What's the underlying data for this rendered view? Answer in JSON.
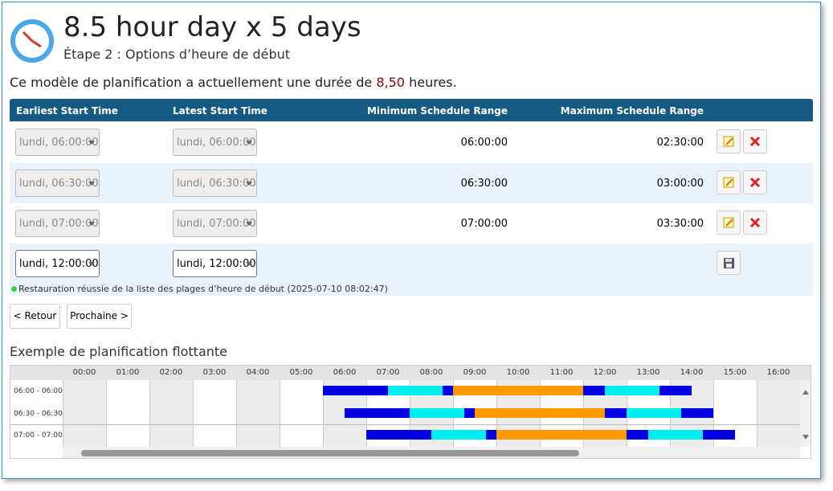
{
  "header": {
    "title": "8.5 hour day x 5 days",
    "subtitle": "Étape 2 : Options d’heure de début"
  },
  "summary": {
    "before": "Ce modèle de planification a actuellement une durée de",
    "hours": "8,50",
    "after": "heures."
  },
  "table": {
    "columns": [
      "Earliest Start Time",
      "Latest Start Time",
      "Minimum Schedule Range",
      "Maximum Schedule Range"
    ],
    "rows": [
      [
        "lundi, 06:00:00",
        "lundi, 06:00:00",
        "06:00:00",
        "02:30:00"
      ],
      [
        "lundi, 06:30:00",
        "lundi, 06:30:00",
        "06:30:00",
        "03:00:00"
      ],
      [
        "lundi, 07:00:00",
        "lundi, 07:00:00",
        "07:00:00",
        "03:30:00"
      ]
    ],
    "new_row": [
      "lundi, 12:00:00",
      "lundi, 12:00:00"
    ]
  },
  "status": "Restauration réussie de la liste des plages d’heure de début (2025-07-10 08:02:47)",
  "buttons": {
    "back": "< Retour",
    "next": "Prochaine >"
  },
  "timeline": {
    "title": "Exemple de planification flottante",
    "hours": [
      "00:00",
      "01:00",
      "02:00",
      "03:00",
      "04:00",
      "05:00",
      "06:00",
      "07:00",
      "08:00",
      "09:00",
      "10:00",
      "11:00",
      "12:00",
      "13:00",
      "14:00",
      "15:00",
      "16:00"
    ],
    "rows": [
      {
        "label": "06:00 - 06:00",
        "segments": [
          {
            "start": 6,
            "end": 7.5,
            "color": "#0000e0"
          },
          {
            "start": 7.5,
            "end": 8.75,
            "color": "#00f0f0"
          },
          {
            "start": 8.75,
            "end": 9,
            "color": "#0000e0"
          },
          {
            "start": 9,
            "end": 12,
            "color": "#ff9900"
          },
          {
            "start": 12,
            "end": 12.5,
            "color": "#0000e0"
          },
          {
            "start": 12.5,
            "end": 13.75,
            "color": "#00f0f0"
          },
          {
            "start": 13.75,
            "end": 14.5,
            "color": "#0000e0"
          }
        ]
      },
      {
        "label": "06:30 - 06:30",
        "segments": [
          {
            "start": 6.5,
            "end": 8,
            "color": "#0000e0"
          },
          {
            "start": 8,
            "end": 9.25,
            "color": "#00f0f0"
          },
          {
            "start": 9.25,
            "end": 9.5,
            "color": "#0000e0"
          },
          {
            "start": 9.5,
            "end": 12.5,
            "color": "#ff9900"
          },
          {
            "start": 12.5,
            "end": 13,
            "color": "#0000e0"
          },
          {
            "start": 13,
            "end": 14.25,
            "color": "#00f0f0"
          },
          {
            "start": 14.25,
            "end": 15,
            "color": "#0000e0"
          }
        ]
      },
      {
        "label": "07:00 - 07:00",
        "segments": [
          {
            "start": 7,
            "end": 8.5,
            "color": "#0000e0"
          },
          {
            "start": 8.5,
            "end": 9.75,
            "color": "#00f0f0"
          },
          {
            "start": 9.75,
            "end": 10,
            "color": "#0000e0"
          },
          {
            "start": 10,
            "end": 13,
            "color": "#ff9900"
          },
          {
            "start": 13,
            "end": 13.5,
            "color": "#0000e0"
          },
          {
            "start": 13.5,
            "end": 14.75,
            "color": "#00f0f0"
          },
          {
            "start": 14.75,
            "end": 15.5,
            "color": "#0000e0"
          }
        ]
      }
    ]
  }
}
